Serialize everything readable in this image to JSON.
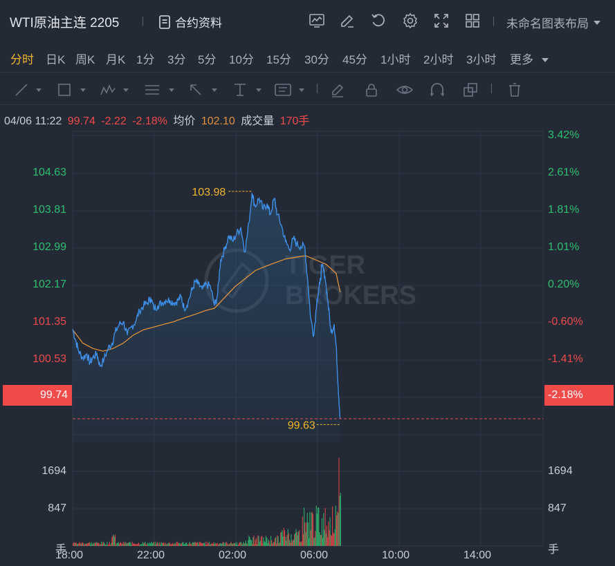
{
  "header": {
    "title": "WTI原油主连 2205",
    "contract_label": "合约资料",
    "layout_label": "未命名图表布局"
  },
  "periods": [
    "分时",
    "日K",
    "周K",
    "月K",
    "1分",
    "3分",
    "5分",
    "10分",
    "15分",
    "30分",
    "45分",
    "1小时",
    "2小时",
    "3小时",
    "更多"
  ],
  "info": {
    "time": "04/06 11:22",
    "price": "99.74",
    "change": "-2.22",
    "change_pct": "-2.18%",
    "avg_label": "均价",
    "avg_value": "102.10",
    "volume_label": "成交量",
    "volume_value": "170手"
  },
  "axis": {
    "left_prices": [
      "104.63",
      "103.81",
      "102.99",
      "102.17",
      "101.35",
      "100.53"
    ],
    "right_pcts": [
      "3.42%",
      "2.61%",
      "1.81%",
      "1.01%",
      "0.20%",
      "-0.60%",
      "-1.41%"
    ],
    "current_price": "99.74",
    "current_pct": "-2.18%",
    "vol_left": [
      "1694",
      "847",
      "手"
    ],
    "vol_right": [
      "1694",
      "847",
      "手"
    ],
    "x_labels": [
      "18:00",
      "22:00",
      "02:00",
      "06:00",
      "10:00",
      "14:00"
    ]
  },
  "annotations": {
    "high": "103.98",
    "low": "99.63"
  },
  "watermark": {
    "line1": "TIGER",
    "line2": "BROKERS"
  },
  "colors": {
    "up": "#2fbf71",
    "down": "#f04a4a",
    "line": "#3d8fe8",
    "avg": "#e0913a",
    "accent": "#f2b52a"
  },
  "chart_data": {
    "type": "line",
    "series_price_points": [
      [
        0,
        101.41
      ],
      [
        0.15,
        101.2
      ],
      [
        0.3,
        101.0
      ],
      [
        0.5,
        100.87
      ],
      [
        0.7,
        100.95
      ],
      [
        0.85,
        100.78
      ],
      [
        1.0,
        100.88
      ],
      [
        1.2,
        100.95
      ],
      [
        1.35,
        100.72
      ],
      [
        1.55,
        100.85
      ],
      [
        1.75,
        101.05
      ],
      [
        1.95,
        101.15
      ],
      [
        2.1,
        101.35
      ],
      [
        2.3,
        101.5
      ],
      [
        2.5,
        101.55
      ],
      [
        2.7,
        101.3
      ],
      [
        2.9,
        101.45
      ],
      [
        3.1,
        101.55
      ],
      [
        3.3,
        101.75
      ],
      [
        3.5,
        101.85
      ],
      [
        3.7,
        101.9
      ],
      [
        3.85,
        102.0
      ],
      [
        4.0,
        101.8
      ],
      [
        4.2,
        101.85
      ],
      [
        4.4,
        101.9
      ],
      [
        4.6,
        101.95
      ],
      [
        4.8,
        101.95
      ],
      [
        5.0,
        101.9
      ],
      [
        5.2,
        101.95
      ],
      [
        5.35,
        102.02
      ],
      [
        5.5,
        101.8
      ],
      [
        5.7,
        101.92
      ],
      [
        5.9,
        102.15
      ],
      [
        6.05,
        102.3
      ],
      [
        6.2,
        102.25
      ],
      [
        6.4,
        102.15
      ],
      [
        6.6,
        102.25
      ],
      [
        6.8,
        102.2
      ],
      [
        7.0,
        101.85
      ],
      [
        7.15,
        102.05
      ],
      [
        7.3,
        102.7
      ],
      [
        7.5,
        102.9
      ],
      [
        7.7,
        103.15
      ],
      [
        7.9,
        103.05
      ],
      [
        8.1,
        103.2
      ],
      [
        8.3,
        103.3
      ],
      [
        8.5,
        102.85
      ],
      [
        8.7,
        103.4
      ],
      [
        8.85,
        103.95
      ],
      [
        9.0,
        103.7
      ],
      [
        9.2,
        103.85
      ],
      [
        9.4,
        103.65
      ],
      [
        9.6,
        103.75
      ],
      [
        9.75,
        103.55
      ],
      [
        9.95,
        103.85
      ],
      [
        10.1,
        103.55
      ],
      [
        10.3,
        103.35
      ],
      [
        10.5,
        103.05
      ],
      [
        10.7,
        102.9
      ],
      [
        10.9,
        103.1
      ],
      [
        11.05,
        103.0
      ],
      [
        11.25,
        102.95
      ],
      [
        11.45,
        102.95
      ],
      [
        11.6,
        102.3
      ],
      [
        11.75,
        101.6
      ],
      [
        11.9,
        101.3
      ],
      [
        12.05,
        101.95
      ],
      [
        12.2,
        102.25
      ],
      [
        12.3,
        102.6
      ],
      [
        12.45,
        102.4
      ],
      [
        12.6,
        101.9
      ],
      [
        12.75,
        101.35
      ],
      [
        12.9,
        101.5
      ],
      [
        13.0,
        101.1
      ],
      [
        13.1,
        100.35
      ],
      [
        13.2,
        99.74
      ]
    ],
    "series_avg_points": [
      [
        0,
        101.4
      ],
      [
        0.5,
        101.15
      ],
      [
        1.0,
        101.05
      ],
      [
        1.5,
        101.0
      ],
      [
        2.0,
        101.05
      ],
      [
        2.5,
        101.15
      ],
      [
        3.0,
        101.3
      ],
      [
        3.5,
        101.4
      ],
      [
        4.0,
        101.45
      ],
      [
        4.5,
        101.5
      ],
      [
        5.0,
        101.55
      ],
      [
        5.5,
        101.62
      ],
      [
        6.0,
        101.68
      ],
      [
        6.5,
        101.75
      ],
      [
        7.0,
        101.8
      ],
      [
        7.5,
        102.0
      ],
      [
        8.0,
        102.2
      ],
      [
        8.5,
        102.35
      ],
      [
        9.0,
        102.5
      ],
      [
        9.5,
        102.58
      ],
      [
        10.0,
        102.65
      ],
      [
        10.5,
        102.72
      ],
      [
        11.0,
        102.75
      ],
      [
        11.5,
        102.78
      ],
      [
        12.0,
        102.7
      ],
      [
        12.5,
        102.62
      ],
      [
        13.0,
        102.45
      ],
      [
        13.2,
        102.1
      ]
    ],
    "x_unit": "hours since 18:00",
    "ylim": [
      99.3,
      105.1
    ],
    "vol_ylim": [
      0,
      2800
    ]
  }
}
